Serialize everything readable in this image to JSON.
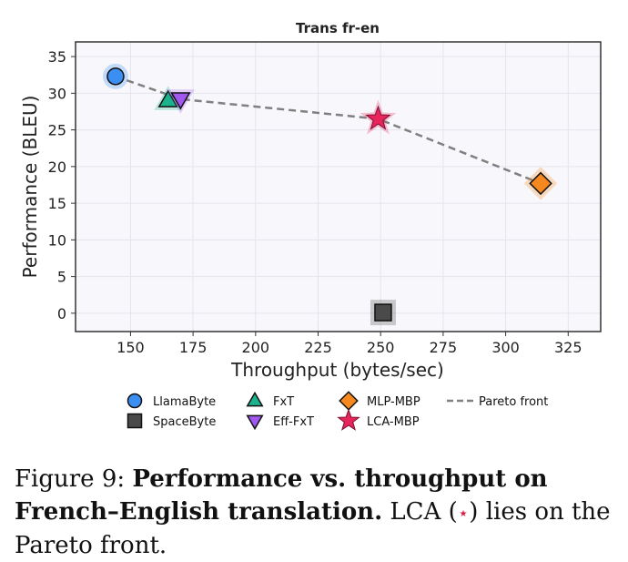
{
  "chart_data": {
    "type": "scatter",
    "title": "Trans fr-en",
    "xlabel": "Throughput (bytes/sec)",
    "ylabel": "Performance (BLEU)",
    "xlim": [
      128,
      338
    ],
    "ylim": [
      -2.5,
      37
    ],
    "xticks": [
      150,
      175,
      200,
      225,
      250,
      275,
      300,
      325
    ],
    "yticks": [
      0,
      5,
      10,
      15,
      20,
      25,
      30,
      35
    ],
    "grid": true,
    "legend_position": "bottom",
    "series": [
      {
        "name": "LlamaByte",
        "marker": "circle",
        "color": "#3b8ff2",
        "x": 144,
        "y": 32.3
      },
      {
        "name": "SpaceByte",
        "marker": "square",
        "color": "#4a4a4a",
        "x": 251,
        "y": 0.1
      },
      {
        "name": "FxT",
        "marker": "triangle-up",
        "color": "#1bb38b",
        "x": 165,
        "y": 29.0
      },
      {
        "name": "Eff-FxT",
        "marker": "triangle-down",
        "color": "#a257f0",
        "x": 170,
        "y": 29.2
      },
      {
        "name": "MLP-MBP",
        "marker": "diamond",
        "color": "#f5891f",
        "x": 314,
        "y": 17.7
      },
      {
        "name": "LCA-MBP",
        "marker": "star",
        "color": "#e8245d",
        "x": 249,
        "y": 26.5
      }
    ],
    "pareto_front": {
      "name": "Pareto front",
      "color": "#808080",
      "points": [
        [
          144,
          32.3
        ],
        [
          170,
          29.2
        ],
        [
          249,
          26.5
        ],
        [
          314,
          17.7
        ]
      ]
    }
  },
  "caption": {
    "prefix": "Figure 9: ",
    "bold": "Performance vs. throughput on French–English translation.",
    "rest_before": " LCA (",
    "symbol": "⋆",
    "rest_after": ") lies on the Pareto front."
  }
}
